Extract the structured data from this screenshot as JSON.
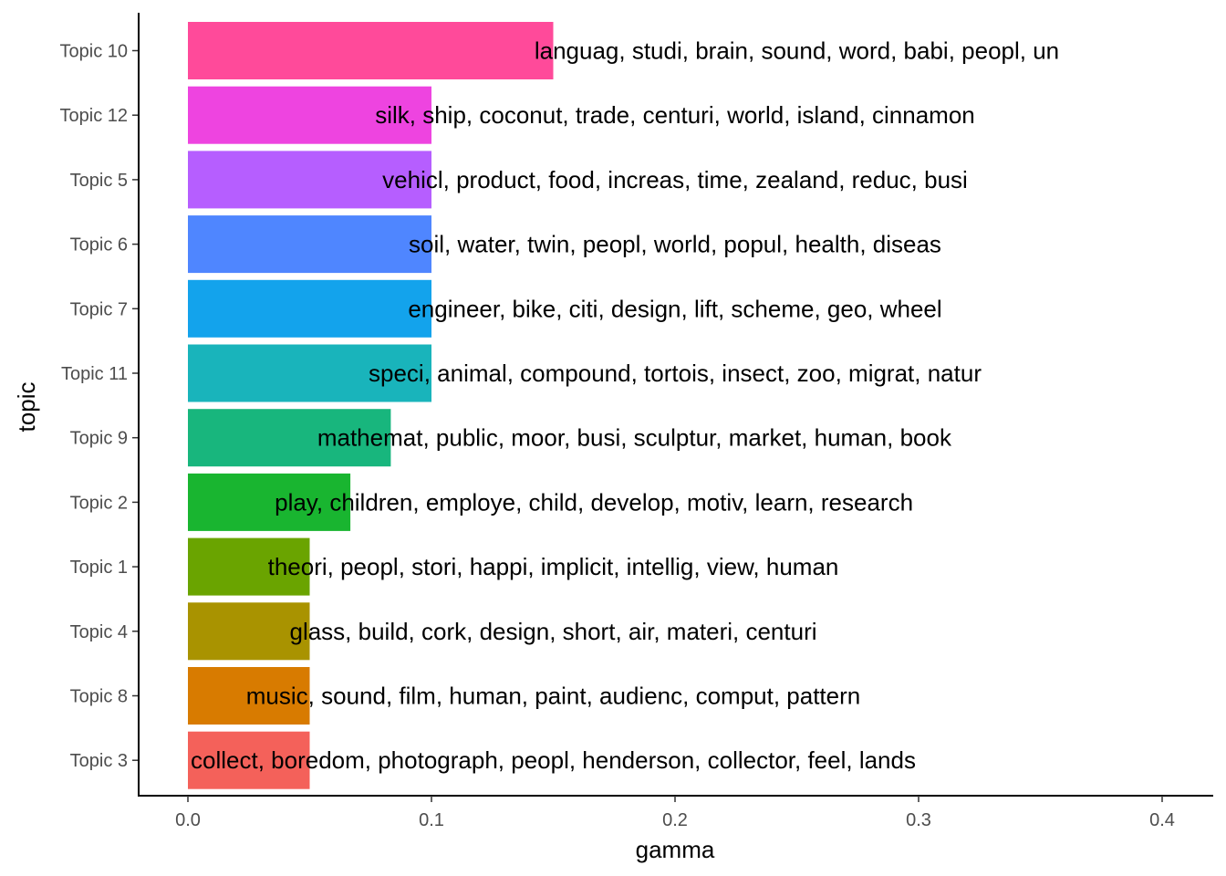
{
  "chart_data": {
    "type": "bar",
    "orientation": "horizontal",
    "xlabel": "gamma",
    "ylabel": "topic",
    "xlim": [
      -0.02,
      0.41
    ],
    "x_ticks": [
      0.0,
      0.1,
      0.2,
      0.3,
      0.4
    ],
    "x_tick_labels": [
      "0.0",
      "0.1",
      "0.2",
      "0.3",
      "0.4"
    ],
    "grid": false,
    "legend": "none",
    "label_offset": 0.1,
    "categories": [
      "Topic 10",
      "Topic 12",
      "Topic 5",
      "Topic 6",
      "Topic 7",
      "Topic 11",
      "Topic 9",
      "Topic 2",
      "Topic 1",
      "Topic 4",
      "Topic 8",
      "Topic 3"
    ],
    "values": [
      0.15,
      0.1,
      0.1,
      0.1,
      0.1,
      0.1,
      0.0833,
      0.0667,
      0.05,
      0.05,
      0.05,
      0.05
    ],
    "colors": [
      "#FF4A9A",
      "#EE44E0",
      "#B65EFF",
      "#4F86FF",
      "#13A3EC",
      "#19B4BB",
      "#18B67D",
      "#19B530",
      "#6AA400",
      "#A99300",
      "#D87B00",
      "#F4615A"
    ],
    "labels": [
      "languag, studi, brain, sound, word, babi, peopl, un",
      "silk, ship, coconut, trade, centuri, world, island, cinnamon",
      "vehicl, product, food, increas, time, zealand, reduc, busi",
      "soil, water, twin, peopl, world, popul, health, diseas",
      "engineer, bike, citi, design, lift, scheme, geo, wheel",
      "speci, animal, compound, tortois, insect, zoo, migrat, natur",
      "mathemat, public, moor, busi, sculptur, market, human, book",
      "play, children, employe, child, develop, motiv, learn, research",
      "theori, peopl, stori, happi, implicit, intellig, view, human",
      "glass, build, cork, design, short, air, materi, centuri",
      "music, sound, film, human, paint, audienc, comput, pattern",
      "collect, boredom, photograph, peopl, henderson, collector, feel, lands"
    ]
  }
}
